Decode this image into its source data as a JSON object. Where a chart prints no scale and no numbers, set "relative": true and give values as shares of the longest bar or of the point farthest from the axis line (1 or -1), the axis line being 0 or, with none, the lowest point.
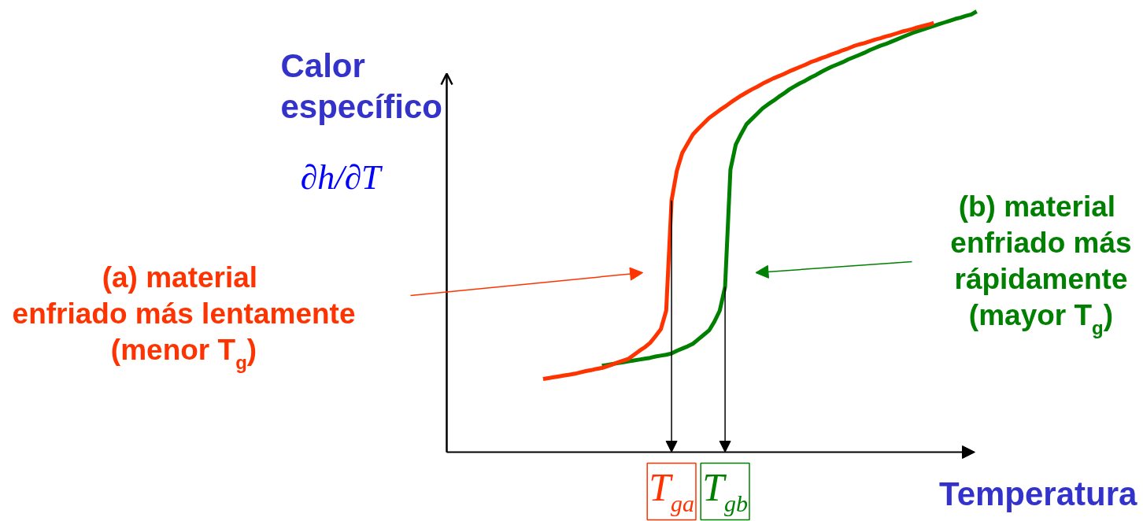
{
  "chart_data": {
    "type": "line",
    "relative": true,
    "xlabel": "Temperatura",
    "ylabel": "Calor\nespecífico\n∂h/∂T",
    "categories": [
      null,
      null,
      null,
      null,
      null,
      null,
      null,
      null,
      null,
      null,
      null,
      null,
      null,
      null,
      null,
      null,
      null,
      null,
      null,
      null,
      null,
      null,
      null,
      null,
      null,
      null,
      null,
      null,
      null,
      null,
      null,
      null,
      null,
      null,
      null,
      null,
      null,
      null,
      null,
      null,
      null,
      "T$_{ga}$",
      null,
      null,
      null,
      null,
      null,
      null,
      null,
      null,
      null,
      "T$_{gb}$",
      null,
      null,
      null,
      null,
      null,
      null,
      null,
      null,
      null,
      null,
      null,
      null,
      null,
      null,
      null,
      null,
      null,
      null,
      null,
      null,
      null,
      null,
      null,
      null,
      null,
      null,
      null,
      null,
      null,
      null,
      null,
      null,
      null,
      null,
      null,
      null,
      null,
      null,
      null,
      null,
      null,
      null,
      null,
      null,
      null,
      null,
      null
    ],
    "series": [
      {
        "color": "#ff3300",
        "values": [
          null,
          null,
          null,
          null,
          null,
          null,
          null,
          null,
          null,
          null,
          null,
          null,
          null,
          null,
          null,
          null,
          null,
          0.166,
          0.168,
          0.17,
          0.172,
          0.174,
          0.176,
          0.178,
          0.181,
          0.184,
          0.186,
          0.189,
          0.191,
          0.195,
          0.199,
          0.204,
          0.208,
          0.212,
          0.221,
          0.23,
          0.238,
          0.248,
          0.263,
          0.279,
          0.321,
          0.571,
          0.639,
          0.679,
          0.7,
          0.721,
          0.734,
          0.746,
          0.758,
          0.767,
          0.776,
          0.784,
          0.793,
          0.801,
          0.809,
          0.816,
          0.823,
          0.829,
          0.836,
          0.842,
          0.848,
          0.853,
          0.858,
          0.864,
          0.869,
          0.874,
          0.879,
          0.885,
          0.889,
          0.894,
          0.898,
          0.903,
          0.907,
          0.912,
          0.916,
          0.921,
          0.925,
          0.928,
          0.932,
          0.936,
          0.939,
          0.943,
          0.946,
          0.95,
          0.954,
          0.957,
          0.96,
          0.964,
          0.967,
          0.97,
          0.974,
          null,
          null,
          null,
          null,
          null,
          null,
          null,
          null
        ]
      },
      {
        "color": "#008000",
        "values": [
          null,
          null,
          null,
          null,
          null,
          null,
          null,
          null,
          null,
          null,
          null,
          null,
          null,
          null,
          null,
          null,
          null,
          null,
          null,
          null,
          null,
          null,
          null,
          null,
          null,
          null,
          null,
          null,
          0.196,
          0.198,
          0.2,
          0.202,
          0.204,
          0.206,
          0.208,
          0.21,
          0.212,
          0.214,
          0.217,
          0.219,
          0.221,
          0.224,
          0.23,
          0.235,
          0.24,
          0.246,
          0.256,
          0.266,
          0.276,
          0.296,
          0.321,
          0.375,
          0.641,
          0.698,
          0.722,
          0.744,
          0.756,
          0.768,
          0.78,
          0.789,
          0.797,
          0.806,
          0.814,
          0.823,
          0.83,
          0.837,
          0.843,
          0.85,
          0.856,
          0.863,
          0.869,
          0.875,
          0.88,
          0.885,
          0.891,
          0.896,
          0.901,
          0.906,
          0.912,
          0.917,
          0.922,
          0.926,
          0.931,
          0.936,
          0.941,
          0.946,
          0.951,
          0.955,
          0.959,
          0.963,
          0.967,
          0.971,
          0.975,
          0.979,
          0.983,
          0.986,
          0.99,
          0.993,
          1.0
        ]
      }
    ],
    "annotations": [
      "(a)  material\nenfriado más lentamente\n(menor T$_{g}$)",
      "(b)  material\nenfriado más\nrápidamente\n(mayor T$_{g}$)"
    ]
  }
}
